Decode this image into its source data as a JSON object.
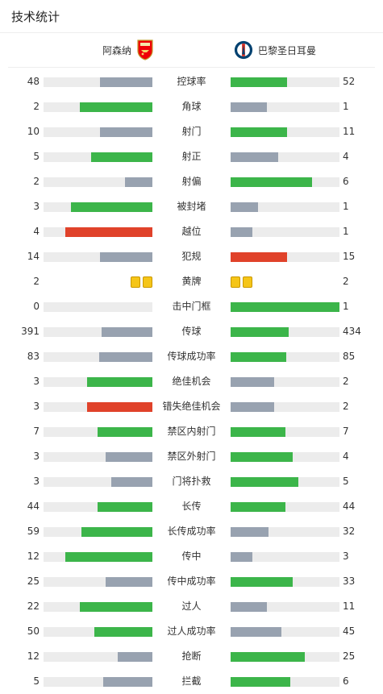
{
  "title": "技术统计",
  "home_team": "阿森纳",
  "away_team": "巴黎圣日耳曼",
  "colors": {
    "green": "#3cb54a",
    "gray": "#98a2b0",
    "red": "#e0422a",
    "track": "#ececec",
    "yellow": "#f5c518"
  },
  "stats": [
    {
      "label": "控球率",
      "home": "48",
      "away": "52",
      "home_fill": 0.48,
      "away_fill": 0.52,
      "home_color": "gray",
      "away_color": "green"
    },
    {
      "label": "角球",
      "home": "2",
      "away": "1",
      "home_fill": 0.67,
      "away_fill": 0.33,
      "home_color": "green",
      "away_color": "gray"
    },
    {
      "label": "射门",
      "home": "10",
      "away": "11",
      "home_fill": 0.48,
      "away_fill": 0.52,
      "home_color": "gray",
      "away_color": "green"
    },
    {
      "label": "射正",
      "home": "5",
      "away": "4",
      "home_fill": 0.56,
      "away_fill": 0.44,
      "home_color": "green",
      "away_color": "gray"
    },
    {
      "label": "射偏",
      "home": "2",
      "away": "6",
      "home_fill": 0.25,
      "away_fill": 0.75,
      "home_color": "gray",
      "away_color": "green"
    },
    {
      "label": "被封堵",
      "home": "3",
      "away": "1",
      "home_fill": 0.75,
      "away_fill": 0.25,
      "home_color": "green",
      "away_color": "gray"
    },
    {
      "label": "越位",
      "home": "4",
      "away": "1",
      "home_fill": 0.8,
      "away_fill": 0.2,
      "home_color": "red",
      "away_color": "gray"
    },
    {
      "label": "犯规",
      "home": "14",
      "away": "15",
      "home_fill": 0.48,
      "away_fill": 0.52,
      "home_color": "gray",
      "away_color": "red"
    },
    {
      "label": "黄牌",
      "home": "2",
      "away": "2",
      "cards_home": 2,
      "cards_away": 2
    },
    {
      "label": "击中门框",
      "home": "0",
      "away": "1",
      "home_fill": 0.0,
      "away_fill": 1.0,
      "home_color": "gray",
      "away_color": "green"
    },
    {
      "label": "传球",
      "home": "391",
      "away": "434",
      "home_fill": 0.47,
      "away_fill": 0.53,
      "home_color": "gray",
      "away_color": "green"
    },
    {
      "label": "传球成功率",
      "home": "83",
      "away": "85",
      "home_fill": 0.49,
      "away_fill": 0.51,
      "home_color": "gray",
      "away_color": "green"
    },
    {
      "label": "绝佳机会",
      "home": "3",
      "away": "2",
      "home_fill": 0.6,
      "away_fill": 0.4,
      "home_color": "green",
      "away_color": "gray"
    },
    {
      "label": "错失绝佳机会",
      "home": "3",
      "away": "2",
      "home_fill": 0.6,
      "away_fill": 0.4,
      "home_color": "red",
      "away_color": "gray"
    },
    {
      "label": "禁区内射门",
      "home": "7",
      "away": "7",
      "home_fill": 0.5,
      "away_fill": 0.5,
      "home_color": "green",
      "away_color": "green"
    },
    {
      "label": "禁区外射门",
      "home": "3",
      "away": "4",
      "home_fill": 0.43,
      "away_fill": 0.57,
      "home_color": "gray",
      "away_color": "green"
    },
    {
      "label": "门将扑救",
      "home": "3",
      "away": "5",
      "home_fill": 0.38,
      "away_fill": 0.62,
      "home_color": "gray",
      "away_color": "green"
    },
    {
      "label": "长传",
      "home": "44",
      "away": "44",
      "home_fill": 0.5,
      "away_fill": 0.5,
      "home_color": "green",
      "away_color": "green"
    },
    {
      "label": "长传成功率",
      "home": "59",
      "away": "32",
      "home_fill": 0.65,
      "away_fill": 0.35,
      "home_color": "green",
      "away_color": "gray"
    },
    {
      "label": "传中",
      "home": "12",
      "away": "3",
      "home_fill": 0.8,
      "away_fill": 0.2,
      "home_color": "green",
      "away_color": "gray"
    },
    {
      "label": "传中成功率",
      "home": "25",
      "away": "33",
      "home_fill": 0.43,
      "away_fill": 0.57,
      "home_color": "gray",
      "away_color": "green"
    },
    {
      "label": "过人",
      "home": "22",
      "away": "11",
      "home_fill": 0.67,
      "away_fill": 0.33,
      "home_color": "green",
      "away_color": "gray"
    },
    {
      "label": "过人成功率",
      "home": "50",
      "away": "45",
      "home_fill": 0.53,
      "away_fill": 0.47,
      "home_color": "green",
      "away_color": "gray"
    },
    {
      "label": "抢断",
      "home": "12",
      "away": "25",
      "home_fill": 0.32,
      "away_fill": 0.68,
      "home_color": "gray",
      "away_color": "green"
    },
    {
      "label": "拦截",
      "home": "5",
      "away": "6",
      "home_fill": 0.45,
      "away_fill": 0.55,
      "home_color": "gray",
      "away_color": "green"
    }
  ]
}
